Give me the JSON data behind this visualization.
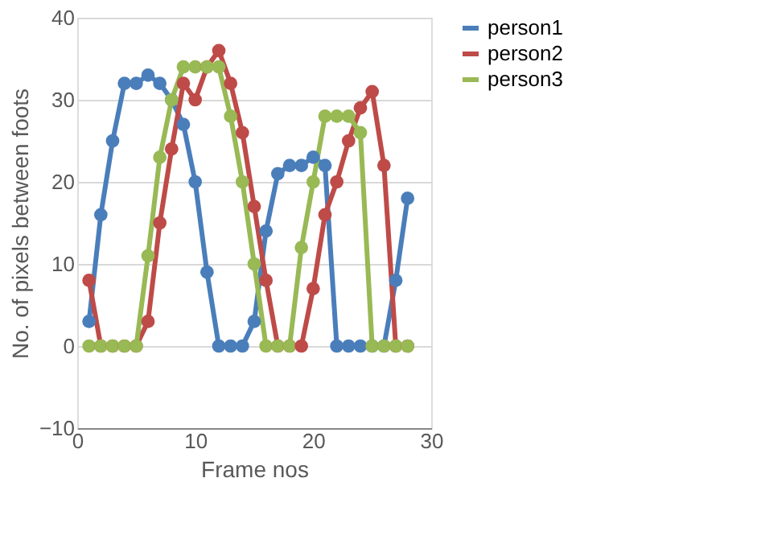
{
  "chart_data": {
    "type": "line",
    "xlabel": "Frame nos",
    "ylabel": "No. of pixels between foots",
    "x": [
      1,
      2,
      3,
      4,
      5,
      6,
      7,
      8,
      9,
      10,
      11,
      12,
      13,
      14,
      15,
      16,
      17,
      18,
      19,
      20,
      21,
      22,
      23,
      24,
      25,
      26,
      27,
      28
    ],
    "series": [
      {
        "name": "person1",
        "color": "#4a7ebb",
        "values": [
          3,
          16,
          25,
          32,
          32,
          33,
          32,
          30,
          27,
          20,
          9,
          0,
          0,
          0,
          3,
          14,
          21,
          22,
          22,
          23,
          22,
          0,
          0,
          0,
          0,
          0,
          8,
          18
        ]
      },
      {
        "name": "person2",
        "color": "#be4b48",
        "values": [
          8,
          0,
          0,
          0,
          0,
          3,
          15,
          24,
          32,
          30,
          34,
          36,
          32,
          26,
          17,
          8,
          0,
          0,
          0,
          7,
          16,
          20,
          25,
          29,
          31,
          22,
          0,
          0
        ]
      },
      {
        "name": "person3",
        "color": "#98b954",
        "values": [
          0,
          0,
          0,
          0,
          0,
          11,
          23,
          30,
          34,
          34,
          34,
          34,
          28,
          20,
          10,
          0,
          0,
          0,
          12,
          20,
          28,
          28,
          28,
          26,
          0,
          0,
          0,
          0
        ]
      }
    ],
    "xlim": [
      0,
      30
    ],
    "xticks": [
      0,
      10,
      20,
      30
    ],
    "ylim": [
      -10,
      40
    ],
    "yticks": [
      -10,
      0,
      10,
      20,
      30,
      40
    ],
    "grid": "y",
    "legend": "right",
    "marker": "circle",
    "line_style": "solid"
  }
}
